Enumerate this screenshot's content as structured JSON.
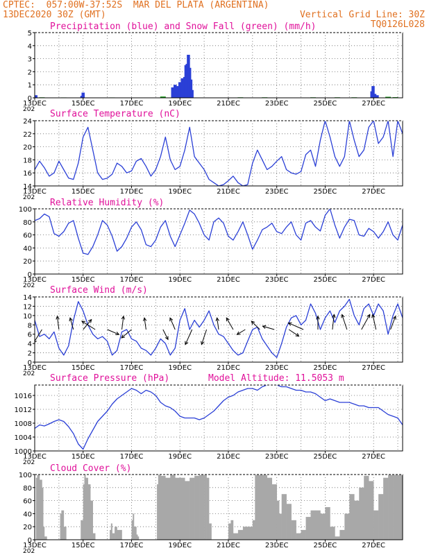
{
  "header": {
    "line1_left": "CPTEC:  057:00W-37:52S  MAR DEL PLATA (ARGENTINA)",
    "line2_left": "13DEC2020 30Z (GMT)",
    "line2_right": "Vertical Grid Line: 30Z",
    "line3_right": "TQ0126L028"
  },
  "colors": {
    "header": "#e07020",
    "title": "#e0109a",
    "series": "#2a3fd6",
    "snow": "#1a9a1a",
    "cloud": "#a8a8a8"
  },
  "x_axis": {
    "tick_labels": [
      "13DEC",
      "15DEC",
      "17DEC",
      "19DEC",
      "21DEC",
      "23DEC",
      "25DEC",
      "27DEC"
    ],
    "clipped_label": "202",
    "range_days": [
      13,
      28.2
    ]
  },
  "chart_data": [
    {
      "type": "bar",
      "title": "Precipitation (blue) and Snow Fall (green) (mm/h)",
      "ylim": [
        0,
        5
      ],
      "yticks": [
        0,
        1,
        2,
        3,
        4,
        5
      ],
      "series": [
        {
          "name": "Precipitation",
          "color": "#2a3fd6",
          "x": [
            13.05,
            14.95,
            15.0,
            18.7,
            18.8,
            18.9,
            19.0,
            19.1,
            19.2,
            19.25,
            19.3,
            19.35,
            19.4,
            19.45,
            19.5,
            26.93,
            26.98,
            27.05,
            27.15
          ],
          "values": [
            0.2,
            0.15,
            0.4,
            0.8,
            1.0,
            0.9,
            1.2,
            1.5,
            1.6,
            2.5,
            2.6,
            3.3,
            2.3,
            1.4,
            0.6,
            0.5,
            0.9,
            0.3,
            0.2
          ]
        },
        {
          "name": "Snow Fall",
          "color": "#1a9a1a",
          "x": [
            13.3,
            14.2,
            16.2,
            18.3,
            21.5,
            22.5,
            24.5,
            25.5,
            26.2,
            27.6,
            27.9
          ],
          "values": [
            0.04,
            0.03,
            0.03,
            0.1,
            0.04,
            0.04,
            0.04,
            0.04,
            0.04,
            0.08,
            0.05
          ]
        }
      ]
    },
    {
      "type": "line",
      "title": "Surface Temperature (nC)",
      "ylim": [
        14,
        24
      ],
      "yticks": [
        14,
        16,
        18,
        20,
        22,
        24
      ],
      "series": [
        {
          "name": "Surface Temperature",
          "x": [
            13.0,
            13.2,
            13.4,
            13.6,
            13.8,
            14.0,
            14.2,
            14.4,
            14.6,
            14.8,
            15.0,
            15.2,
            15.4,
            15.6,
            15.8,
            16.0,
            16.2,
            16.4,
            16.6,
            16.8,
            17.0,
            17.2,
            17.4,
            17.6,
            17.8,
            18.0,
            18.2,
            18.4,
            18.6,
            18.8,
            19.0,
            19.2,
            19.4,
            19.6,
            19.8,
            20.0,
            20.2,
            20.4,
            20.6,
            20.8,
            21.0,
            21.2,
            21.4,
            21.6,
            21.8,
            22.0,
            22.2,
            22.4,
            22.6,
            22.8,
            23.0,
            23.2,
            23.4,
            23.6,
            23.8,
            24.0,
            24.2,
            24.4,
            24.6,
            24.8,
            25.0,
            25.2,
            25.4,
            25.6,
            25.8,
            26.0,
            26.2,
            26.4,
            26.6,
            26.8,
            27.0,
            27.2,
            27.4,
            27.6,
            27.8,
            28.0,
            28.2
          ],
          "values": [
            16.5,
            17.8,
            16.8,
            15.5,
            16.0,
            17.8,
            16.5,
            15.2,
            15.0,
            17.5,
            21.5,
            23.0,
            19.5,
            16.0,
            15.0,
            15.2,
            15.8,
            17.5,
            17.0,
            16.0,
            16.3,
            17.8,
            18.2,
            17.0,
            15.5,
            16.5,
            18.5,
            21.5,
            18.0,
            16.5,
            17.0,
            19.5,
            23.0,
            18.5,
            17.5,
            16.5,
            15.0,
            14.5,
            14.0,
            14.2,
            14.8,
            15.5,
            14.5,
            14.0,
            14.2,
            17.5,
            19.5,
            18.0,
            16.5,
            17.0,
            17.8,
            18.5,
            16.5,
            16.0,
            15.8,
            16.2,
            18.8,
            19.5,
            17.0,
            21.0,
            24.0,
            21.5,
            18.5,
            17.0,
            18.5,
            24.0,
            21.0,
            18.5,
            19.5,
            23.0,
            24.0,
            20.5,
            21.5,
            24.0,
            18.5,
            24.0,
            22.0
          ]
        }
      ]
    },
    {
      "type": "line",
      "title": "Relative Humidity (%)",
      "ylim": [
        0,
        100
      ],
      "yticks": [
        0,
        20,
        40,
        60,
        80,
        100
      ],
      "series": [
        {
          "name": "Relative Humidity",
          "x": [
            13.0,
            13.2,
            13.4,
            13.6,
            13.8,
            14.0,
            14.2,
            14.4,
            14.6,
            14.8,
            15.0,
            15.2,
            15.4,
            15.6,
            15.8,
            16.0,
            16.2,
            16.4,
            16.6,
            16.8,
            17.0,
            17.2,
            17.4,
            17.6,
            17.8,
            18.0,
            18.2,
            18.4,
            18.6,
            18.8,
            19.0,
            19.2,
            19.4,
            19.6,
            19.8,
            20.0,
            20.2,
            20.4,
            20.6,
            20.8,
            21.0,
            21.2,
            21.4,
            21.6,
            21.8,
            22.0,
            22.2,
            22.4,
            22.6,
            22.8,
            23.0,
            23.2,
            23.4,
            23.6,
            23.8,
            24.0,
            24.2,
            24.4,
            24.6,
            24.8,
            25.0,
            25.2,
            25.4,
            25.6,
            25.8,
            26.0,
            26.2,
            26.4,
            26.6,
            26.8,
            27.0,
            27.2,
            27.4,
            27.6,
            27.8,
            28.0,
            28.2
          ],
          "values": [
            82,
            85,
            92,
            88,
            62,
            58,
            65,
            78,
            82,
            55,
            32,
            30,
            42,
            60,
            82,
            75,
            58,
            35,
            42,
            55,
            72,
            80,
            68,
            45,
            42,
            52,
            72,
            82,
            58,
            42,
            60,
            78,
            98,
            92,
            78,
            60,
            52,
            80,
            86,
            78,
            58,
            52,
            65,
            80,
            60,
            38,
            52,
            68,
            72,
            78,
            65,
            62,
            72,
            80,
            60,
            52,
            78,
            82,
            72,
            66,
            90,
            100,
            75,
            55,
            72,
            84,
            82,
            60,
            58,
            70,
            65,
            55,
            65,
            80,
            60,
            52,
            75
          ]
        }
      ]
    },
    {
      "type": "line",
      "title": "Surface Wind (m/s)",
      "ylim": [
        0,
        14
      ],
      "yticks": [
        0,
        2,
        4,
        6,
        8,
        10,
        12,
        14
      ],
      "series": [
        {
          "name": "Surface Wind Speed",
          "x": [
            13.0,
            13.2,
            13.4,
            13.6,
            13.8,
            14.0,
            14.2,
            14.4,
            14.6,
            14.8,
            15.0,
            15.2,
            15.4,
            15.6,
            15.8,
            16.0,
            16.2,
            16.4,
            16.6,
            16.8,
            17.0,
            17.2,
            17.4,
            17.6,
            17.8,
            18.0,
            18.2,
            18.4,
            18.6,
            18.8,
            19.0,
            19.2,
            19.4,
            19.6,
            19.8,
            20.0,
            20.2,
            20.4,
            20.6,
            20.8,
            21.0,
            21.2,
            21.4,
            21.6,
            21.8,
            22.0,
            22.2,
            22.4,
            22.6,
            22.8,
            23.0,
            23.2,
            23.4,
            23.6,
            23.8,
            24.0,
            24.2,
            24.4,
            24.6,
            24.8,
            25.0,
            25.2,
            25.4,
            25.6,
            25.8,
            26.0,
            26.2,
            26.4,
            26.6,
            26.8,
            27.0,
            27.2,
            27.4,
            27.6,
            27.8,
            28.0,
            28.2
          ],
          "values": [
            9.0,
            5.5,
            6.0,
            5.0,
            6.5,
            3.0,
            1.5,
            3.5,
            9.0,
            13.0,
            11.0,
            8.0,
            6.0,
            5.0,
            5.5,
            4.5,
            1.5,
            2.5,
            6.5,
            7.0,
            5.0,
            4.5,
            3.0,
            2.5,
            1.5,
            3.0,
            5.0,
            4.0,
            1.5,
            3.0,
            9.0,
            11.5,
            7.0,
            9.0,
            7.5,
            9.0,
            11.0,
            8.0,
            6.0,
            5.5,
            4.0,
            2.5,
            1.5,
            2.0,
            4.5,
            7.0,
            7.5,
            5.0,
            3.5,
            2.0,
            1.0,
            4.0,
            7.5,
            9.5,
            10.0,
            8.0,
            9.0,
            12.5,
            10.5,
            7.0,
            9.5,
            11.0,
            8.5,
            11.0,
            12.0,
            13.5,
            10.0,
            8.0,
            11.5,
            12.5,
            10.0,
            12.5,
            11.0,
            6.0,
            10.0,
            12.5,
            9.5
          ]
        }
      ],
      "vectors": {
        "x": [
          13.3,
          14.0,
          14.6,
          15.0,
          15.5,
          16.0,
          16.6,
          17.0,
          17.6,
          18.3,
          18.8,
          19.5,
          20.1,
          20.6,
          21.2,
          21.7,
          22.3,
          22.9,
          23.5,
          24.1,
          24.7,
          25.3,
          25.9,
          26.5,
          27.1,
          27.7
        ],
        "u": [
          -5,
          -1,
          -2,
          5,
          -8,
          7,
          1,
          -6,
          -1,
          3,
          -3,
          -4,
          -3,
          -1,
          -4,
          -5,
          -5,
          -7,
          6,
          -9,
          0,
          1,
          -3,
          5,
          -2,
          3
        ],
        "v": [
          -8,
          8,
          7,
          6,
          5,
          -3,
          8,
          -5,
          7,
          -6,
          7,
          -9,
          -9,
          7,
          7,
          -3,
          5,
          2,
          -4,
          4,
          8,
          9,
          9,
          9,
          9,
          8
        ]
      }
    },
    {
      "type": "line",
      "title": "Surface Pressure (hPa)",
      "annotation": "Model Altitude: 11.5053 m",
      "ylim": [
        1000,
        1019
      ],
      "yticks": [
        1000,
        1004,
        1008,
        1012,
        1016
      ],
      "series": [
        {
          "name": "Surface Pressure",
          "x": [
            13.0,
            13.2,
            13.4,
            13.6,
            13.8,
            14.0,
            14.2,
            14.4,
            14.6,
            14.8,
            15.0,
            15.2,
            15.4,
            15.6,
            15.8,
            16.0,
            16.2,
            16.4,
            16.6,
            16.8,
            17.0,
            17.2,
            17.4,
            17.6,
            17.8,
            18.0,
            18.2,
            18.4,
            18.6,
            18.8,
            19.0,
            19.2,
            19.4,
            19.6,
            19.8,
            20.0,
            20.2,
            20.4,
            20.6,
            20.8,
            21.0,
            21.2,
            21.4,
            21.6,
            21.8,
            22.0,
            22.2,
            22.4,
            22.6,
            22.8,
            23.0,
            23.2,
            23.4,
            23.6,
            23.8,
            24.0,
            24.2,
            24.4,
            24.6,
            24.8,
            25.0,
            25.2,
            25.4,
            25.6,
            25.8,
            26.0,
            26.2,
            26.4,
            26.6,
            26.8,
            27.0,
            27.2,
            27.4,
            27.6,
            27.8,
            28.0,
            28.2
          ],
          "values": [
            1006.5,
            1007.5,
            1007.2,
            1007.8,
            1008.5,
            1009.0,
            1008.5,
            1007.0,
            1005.0,
            1002.0,
            1000.5,
            1003.5,
            1006.0,
            1008.5,
            1010.0,
            1011.5,
            1013.5,
            1015.0,
            1016.0,
            1017.0,
            1018.0,
            1017.5,
            1016.5,
            1017.5,
            1017.0,
            1016.0,
            1014.0,
            1013.0,
            1012.5,
            1011.5,
            1010.0,
            1009.5,
            1009.5,
            1009.5,
            1009.0,
            1009.5,
            1010.5,
            1011.5,
            1013.0,
            1014.5,
            1015.5,
            1016.0,
            1017.0,
            1017.5,
            1018.0,
            1018.0,
            1017.5,
            1018.5,
            1019.0,
            1019.5,
            1019.0,
            1018.5,
            1018.5,
            1018.0,
            1017.5,
            1017.5,
            1017.0,
            1017.0,
            1016.5,
            1015.5,
            1014.5,
            1015.0,
            1014.5,
            1014.0,
            1014.0,
            1014.0,
            1013.5,
            1013.0,
            1013.0,
            1012.5,
            1012.5,
            1012.5,
            1011.5,
            1010.5,
            1010.0,
            1009.5,
            1007.5
          ]
        }
      ]
    },
    {
      "type": "area",
      "title": "Cloud Cover (%)",
      "ylim": [
        0,
        100
      ],
      "yticks": [
        0,
        20,
        40,
        60,
        80,
        100
      ],
      "series": [
        {
          "name": "Cloud Cover",
          "x": [
            13.0,
            13.05,
            13.1,
            13.2,
            13.3,
            13.35,
            13.4,
            13.5,
            13.6,
            13.8,
            14.0,
            14.05,
            14.1,
            14.2,
            14.3,
            14.4,
            14.6,
            14.8,
            14.9,
            15.0,
            15.05,
            15.1,
            15.2,
            15.3,
            15.4,
            15.5,
            15.6,
            15.8,
            16.0,
            16.1,
            16.15,
            16.2,
            16.3,
            16.4,
            16.6,
            16.8,
            16.9,
            17.0,
            17.05,
            17.1,
            17.2,
            17.25,
            17.3,
            17.4,
            17.6,
            17.8,
            18.0,
            18.05,
            18.1,
            18.2,
            18.4,
            18.6,
            18.8,
            19.0,
            19.2,
            19.4,
            19.6,
            19.8,
            20.0,
            20.1,
            20.2,
            20.3,
            20.5,
            20.7,
            21.0,
            21.1,
            21.2,
            21.4,
            21.6,
            21.8,
            22.0,
            22.1,
            22.2,
            22.4,
            22.6,
            22.8,
            23.0,
            23.1,
            23.2,
            23.4,
            23.6,
            23.8,
            24.0,
            24.2,
            24.4,
            24.6,
            24.8,
            25.0,
            25.2,
            25.4,
            25.6,
            25.8,
            26.0,
            26.2,
            26.4,
            26.6,
            26.8,
            27.0,
            27.2,
            27.4,
            27.6,
            27.8,
            28.0,
            28.2
          ],
          "values": [
            0,
            95,
            100,
            92,
            80,
            20,
            5,
            0,
            0,
            0,
            0,
            40,
            45,
            20,
            0,
            0,
            0,
            0,
            30,
            85,
            100,
            95,
            85,
            60,
            10,
            0,
            0,
            0,
            0,
            15,
            25,
            10,
            20,
            15,
            0,
            0,
            0,
            30,
            40,
            20,
            8,
            5,
            0,
            0,
            0,
            0,
            0,
            85,
            100,
            98,
            95,
            100,
            95,
            95,
            90,
            95,
            98,
            100,
            100,
            95,
            25,
            0,
            0,
            0,
            25,
            30,
            10,
            15,
            20,
            20,
            30,
            100,
            100,
            100,
            95,
            85,
            60,
            40,
            70,
            55,
            30,
            10,
            15,
            35,
            45,
            45,
            40,
            50,
            20,
            5,
            15,
            40,
            70,
            60,
            80,
            98,
            90,
            45,
            70,
            95,
            100,
            100,
            100,
            95
          ]
        }
      ]
    }
  ]
}
